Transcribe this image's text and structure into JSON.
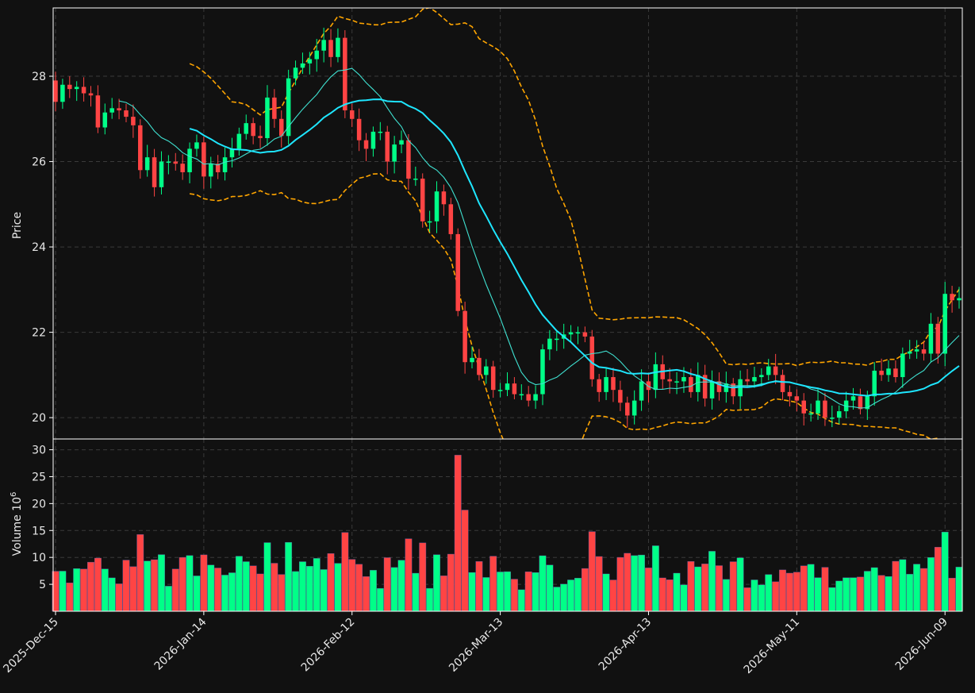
{
  "chart_data": {
    "type": "candlestick",
    "price_panel": {
      "ylabel": "Price",
      "ylim": [
        19.5,
        29.6
      ],
      "yticks": [
        20,
        22,
        24,
        26,
        28
      ],
      "grid": true
    },
    "volume_panel": {
      "ylabel": "Volume",
      "ylabel_exp": "6",
      "ylabel_base": "10",
      "ylim": [
        0,
        32
      ],
      "yticks": [
        5,
        10,
        15,
        20,
        25,
        30
      ],
      "grid": true
    },
    "x_tick_labels": [
      {
        "index": 0,
        "label": "2025-Dec-15"
      },
      {
        "index": 21,
        "label": "2026-Jan-14"
      },
      {
        "index": 42,
        "label": "2026-Feb-12"
      },
      {
        "index": 63,
        "label": "2026-Mar-13"
      },
      {
        "index": 84,
        "label": "2026-Apr-13"
      },
      {
        "index": 105,
        "label": "2026-May-11"
      },
      {
        "index": 126,
        "label": "2026-Jun-09"
      }
    ],
    "up_color": "#00ff88",
    "down_color": "#ff4444",
    "ma_fast_color": "#3fe0d0",
    "ma_slow_color": "#1ee6ff",
    "band_color": "#ffa500",
    "close": [
      27.4,
      27.8,
      27.7,
      27.75,
      27.6,
      27.55,
      26.8,
      27.15,
      27.25,
      27.2,
      27.05,
      26.85,
      25.8,
      26.1,
      25.4,
      26.0,
      26.0,
      25.95,
      25.75,
      26.3,
      26.45,
      25.65,
      25.95,
      25.75,
      26.1,
      26.3,
      26.65,
      26.9,
      26.6,
      26.55,
      27.5,
      27.0,
      26.6,
      27.95,
      28.2,
      28.3,
      28.4,
      28.6,
      28.85,
      28.45,
      28.9,
      27.2,
      27.0,
      26.5,
      26.3,
      26.7,
      26.7,
      26.0,
      26.4,
      26.5,
      25.6,
      25.6,
      24.6,
      24.6,
      25.3,
      25.0,
      24.3,
      22.5,
      21.3,
      21.4,
      21.0,
      21.2,
      20.65,
      20.65,
      20.8,
      20.55,
      20.55,
      20.4,
      20.55,
      21.6,
      21.85,
      21.85,
      21.95,
      22.0,
      22.0,
      21.9,
      20.9,
      20.6,
      20.95,
      20.65,
      20.35,
      20.05,
      20.4,
      20.85,
      20.65,
      21.25,
      20.9,
      20.85,
      20.85,
      20.95,
      20.6,
      21.0,
      20.45,
      20.85,
      20.6,
      20.8,
      20.5,
      20.9,
      20.85,
      20.95,
      21.0,
      21.2,
      21.0,
      20.6,
      20.5,
      20.4,
      20.1,
      20.1,
      20.4,
      20.0,
      20.0,
      20.15,
      20.4,
      20.5,
      20.2,
      20.5,
      21.1,
      21.0,
      21.15,
      20.95,
      21.5,
      21.55,
      21.6,
      21.5,
      22.2,
      21.5,
      22.9,
      22.75,
      22.8
    ]
  }
}
